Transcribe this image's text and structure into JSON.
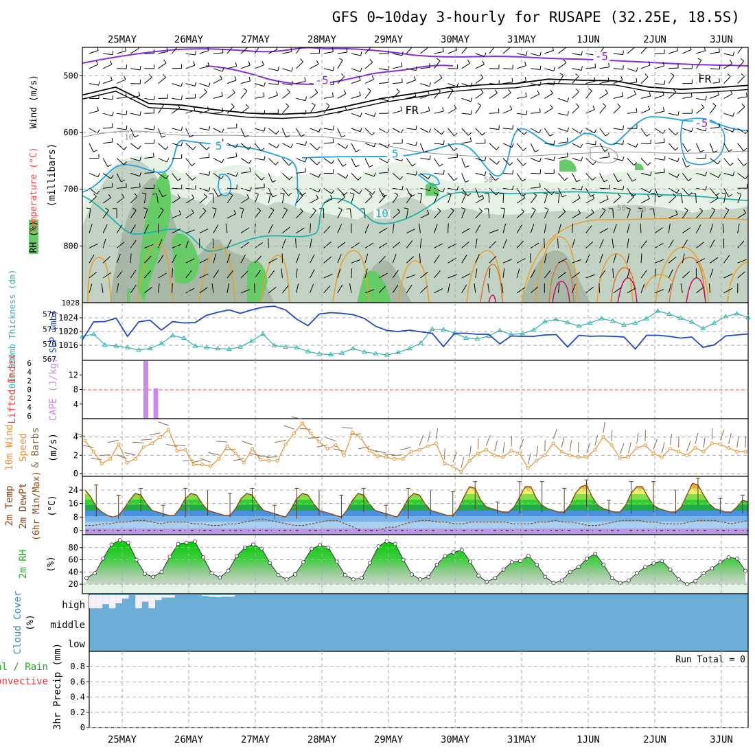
{
  "title": "GFS 0~10day 3-hourly for RUSAPE (32.25E, 18.5S)",
  "dates": [
    "25MAY",
    "26MAY",
    "27MAY",
    "28MAY",
    "29MAY",
    "30MAY",
    "31MAY",
    "1JUN",
    "2JUN",
    "3JUN"
  ],
  "colors": {
    "grid": "#a9a9a9",
    "rh_light": "#e6f2e6",
    "rh_mid": "#c3d3c3",
    "rh_dark": "#a7b8a7",
    "rh_green": "#66cc66",
    "slp": "#1e46c8",
    "thickness": "#33b2b2",
    "cape": "#cc88ee",
    "lifted": "#ff4444",
    "wind_speed": "#e89030",
    "barb": "#8b6b4a",
    "temp_line": "#8b4513",
    "cloud": "#6baed6",
    "cloud_clear": "#f6f0f8"
  },
  "chart_data": [
    {
      "type": "contour",
      "panel": "upper-air",
      "ylabel_parts": [
        "RH (%)",
        "Temperature (°C)",
        "Wind (m/s)"
      ],
      "yaxis_label": "(millibars)",
      "y_ticks": [
        500,
        600,
        700,
        800
      ],
      "ylim": [
        450,
        900
      ],
      "contour_labels": [
        {
          "text": "-5",
          "x": 7.2,
          "p": 470
        },
        {
          "text": "-5",
          "x": 3.0,
          "p": 512
        },
        {
          "text": "FR",
          "x": 8.75,
          "p": 510
        },
        {
          "text": "FR",
          "x": 4.35,
          "p": 565
        },
        {
          "text": "-5",
          "x": 8.7,
          "p": 588
        },
        {
          "text": "5",
          "x": 1.45,
          "p": 628
        },
        {
          "text": "5",
          "x": 4.1,
          "p": 642
        },
        {
          "text": "10",
          "x": 0.1,
          "p": 610
        },
        {
          "text": "10",
          "x": 3.9,
          "p": 747
        },
        {
          "text": "50",
          "x": 5.5,
          "p": 685
        },
        {
          "text": "50",
          "x": 7.5,
          "p": 735
        },
        {
          "text": "50",
          "x": 7.8,
          "p": 738
        }
      ],
      "freezing_level_mb": [
        534,
        520,
        549,
        552,
        560,
        566,
        568,
        565,
        553,
        540,
        531,
        521,
        516,
        514,
        506,
        508,
        509,
        520,
        524,
        521,
        517
      ]
    },
    {
      "type": "line",
      "panel": "pressure",
      "ylabel_left": "1000-500mb Thickness (dm)",
      "ylabel_right": "SLP (mb)",
      "left_ticks": [
        567,
        570,
        573,
        576
      ],
      "left_top_label": "1028",
      "right_ticks": [
        1016,
        1020,
        1024
      ],
      "series": [
        {
          "name": "SLP (mb)",
          "values": [
            1017.6,
            1022.8,
            1022.9,
            1023.9,
            1018.6,
            1022.8,
            1023.3,
            1020.4,
            1022.9,
            1022.5,
            1022.6,
            1024.7,
            1025.6,
            1026.3,
            1025.3,
            1026.3,
            1027.1,
            1027.4,
            1026.3,
            1023.6,
            1021.7,
            1025.1,
            1025.5,
            1025.3,
            1024.9,
            1023.8,
            1021.5,
            1020.3,
            1020.0,
            1020.4,
            1019.9,
            1019.5,
            1015.6,
            1019.5,
            1019.5,
            1019.2,
            1019.2,
            1016.4,
            1018.7,
            1018.6,
            1018.6,
            1019.0,
            1019.1,
            1015.5,
            1018.9,
            1018.6,
            1018.7,
            1018.6,
            1018.4,
            1014.9,
            1018.9,
            1018.9,
            1018.6,
            1018.1,
            1018.4,
            1015.4,
            1016.1,
            1018.7,
            1019.0,
            1019.3
          ]
        },
        {
          "name": "Thickness (dm)",
          "values": [
            571.5,
            572.0,
            569.8,
            569.6,
            569.3,
            568.8,
            569.1,
            570.1,
            571.7,
            571.2,
            569.6,
            569.3,
            569.1,
            569.0,
            569.4,
            570.6,
            572.0,
            569.7,
            569.4,
            569.3,
            568.5,
            568.0,
            567.9,
            568.2,
            569.1,
            568.4,
            568.1,
            567.8,
            568.3,
            569.1,
            570.2,
            573.0,
            572.9,
            572.2,
            571.2,
            571.0,
            571.6,
            572.7,
            571.9,
            572.1,
            572.8,
            574.5,
            574.9,
            574.3,
            573.6,
            574.2,
            575.1,
            574.6,
            573.8,
            574.2,
            575.1,
            576.6,
            576.0,
            575.2,
            574.4,
            573.1,
            574.2,
            575.5,
            576.1,
            575.3
          ]
        }
      ]
    },
    {
      "type": "bar",
      "panel": "instability",
      "ylabel_left": "Lifted Index",
      "ylabel_right": "CAPE (J/kg)",
      "left_ticks": [
        "6",
        "4",
        "2",
        "0",
        "2",
        "4",
        "6"
      ],
      "right_ticks": [
        4,
        8,
        12
      ],
      "zero_line_value": 8,
      "series": [
        {
          "name": "CAPE (J/kg)",
          "x": [
            0.35,
            0.5
          ],
          "values": [
            15.8,
            8.3
          ]
        }
      ]
    },
    {
      "type": "line",
      "panel": "surface-wind",
      "ylabel": [
        "10m Wind",
        "Speed",
        "& Barbs",
        "(m/s)"
      ],
      "y_ticks": [
        0,
        2,
        4
      ],
      "ylim": [
        0,
        6
      ],
      "series": [
        {
          "name": "10m Wind Speed (m/s)",
          "values": [
            3.6,
            2.4,
            1.1,
            1.6,
            3.2,
            1.2,
            1.6,
            2.9,
            3.3,
            4.0,
            4.8,
            2.5,
            2.6,
            1.0,
            1.0,
            0.8,
            1.6,
            3.0,
            2.2,
            1.2,
            2.7,
            1.5,
            1.4,
            1.4,
            3.2,
            4.4,
            5.5,
            4.4,
            3.5,
            2.7,
            3.1,
            2.0,
            4.5,
            3.9,
            2.5,
            1.9,
            1.8,
            1.6,
            1.6,
            2.4,
            2.6,
            3.0,
            3.3,
            1.1,
            0.8,
            0.2,
            1.4,
            2.2,
            2.6,
            2.0,
            1.8,
            2.5,
            2.2,
            0.6,
            1.4,
            2.0,
            3.3,
            2.4,
            2.0,
            1.8,
            1.8,
            2.6,
            4.0,
            3.1,
            1.7,
            1.8,
            2.8,
            3.1,
            2.2,
            1.8,
            2.7,
            2.4,
            2.0,
            2.8,
            2.4,
            3.3,
            3.2,
            2.8,
            2.4,
            2.4
          ]
        }
      ]
    },
    {
      "type": "area",
      "panel": "temperature",
      "ylabel": [
        "2m Temp",
        "2m DewPt",
        "(6hr Min/Max)",
        "(°C)"
      ],
      "y_ticks": [
        0,
        8,
        16,
        24
      ],
      "ylim": [
        -1,
        30
      ],
      "series": [
        {
          "name": "2m Temp (°C)",
          "values": [
            24,
            20,
            14,
            11,
            9,
            8,
            9,
            13,
            18,
            22,
            21,
            16,
            12,
            11,
            10,
            9,
            9,
            13,
            19,
            22,
            21,
            16,
            12,
            11,
            10,
            9,
            9,
            13,
            19,
            22,
            21,
            16,
            12,
            11,
            10,
            9,
            8,
            13,
            19,
            22,
            21,
            16,
            12,
            11,
            10,
            9,
            8,
            12,
            18,
            22,
            21,
            16,
            12,
            11,
            10,
            9,
            8,
            13,
            19,
            22,
            21,
            16,
            12,
            11,
            10,
            9,
            9,
            13,
            20,
            26,
            25,
            18,
            14,
            13,
            12,
            11,
            11,
            14,
            20,
            26,
            26,
            19,
            15,
            13,
            12,
            11,
            11,
            15,
            22,
            26,
            27,
            20,
            15,
            13,
            12,
            11,
            11,
            15,
            22,
            26,
            26,
            20,
            15,
            13,
            12,
            11,
            11,
            14,
            21,
            28,
            27,
            21,
            16,
            13,
            12,
            11,
            11,
            14,
            18,
            17
          ]
        },
        {
          "name": "2m DewPt (°C)",
          "values": [
            3,
            3,
            4,
            4,
            5,
            5,
            6,
            6,
            5,
            4,
            5,
            5,
            5,
            4,
            4,
            3,
            3,
            4,
            4,
            5,
            6,
            7,
            6,
            5,
            4,
            3,
            3,
            4,
            5,
            6,
            6,
            4,
            2,
            0,
            0,
            0,
            2,
            2,
            4,
            5,
            6,
            6,
            5,
            5,
            4,
            4,
            5,
            5,
            5,
            5,
            5,
            4,
            4,
            4,
            5,
            5,
            6,
            5,
            5,
            4,
            3,
            3,
            4,
            5,
            6,
            6,
            6,
            5,
            5,
            4,
            4,
            4,
            5,
            6,
            6,
            6,
            5,
            4,
            5,
            6
          ]
        }
      ]
    },
    {
      "type": "area",
      "panel": "humidity",
      "ylabel": [
        "2m RH",
        "(%)"
      ],
      "y_ticks": [
        20,
        40,
        60,
        80
      ],
      "ylim": [
        0,
        100
      ],
      "series": [
        {
          "name": "2m RH (%)",
          "values": [
            30,
            38,
            62,
            85,
            92,
            88,
            60,
            37,
            32,
            40,
            65,
            86,
            88,
            90,
            64,
            38,
            31,
            42,
            66,
            80,
            85,
            78,
            55,
            35,
            28,
            36,
            56,
            78,
            84,
            80,
            57,
            35,
            28,
            30,
            55,
            82,
            90,
            86,
            60,
            36,
            28,
            32,
            52,
            66,
            72,
            76,
            57,
            34,
            24,
            30,
            44,
            56,
            58,
            66,
            52,
            32,
            22,
            26,
            40,
            48,
            62,
            70,
            52,
            30,
            22,
            26,
            38,
            48,
            54,
            58,
            44,
            28,
            20,
            25,
            38,
            46,
            56,
            64,
            62,
            42
          ]
        }
      ]
    },
    {
      "type": "area",
      "panel": "cloud",
      "ylabel": [
        "Cloud Cover",
        "(%)"
      ],
      "levels": [
        "high",
        "middle",
        "low"
      ],
      "series": [
        {
          "name": "High cloud clear fraction (%)",
          "values": [
            80,
            80,
            55,
            80,
            50,
            22,
            0,
            80,
            40,
            80,
            30,
            15,
            15,
            0,
            0,
            5,
            10,
            12,
            10,
            10,
            0,
            0,
            0,
            0,
            0,
            0,
            0,
            0,
            0,
            0,
            0,
            0,
            0,
            0,
            0,
            0,
            0,
            0,
            0,
            0
          ]
        }
      ]
    },
    {
      "type": "bar",
      "panel": "precip",
      "ylabel_left": [
        "Total / Rain",
        "Convective"
      ],
      "ylabel": "3hr Precip (mm)",
      "y_ticks": [
        0,
        0.2,
        0.4,
        0.6,
        0.8
      ],
      "ylim": [
        0,
        1
      ],
      "run_total": "Run Total = 0",
      "series": []
    }
  ]
}
